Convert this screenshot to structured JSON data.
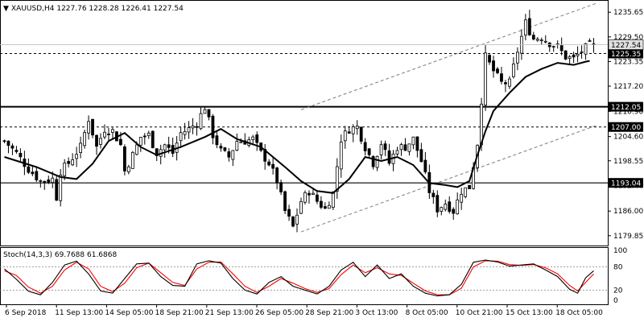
{
  "header": {
    "arrow": "▼",
    "symbol_line": "XAUUSD,H4  1227.76 1228.28 1226.41 1227.54",
    "stoch_label": "Stoch(14,3,3) 69.7688 61.6868"
  },
  "chart_data": [
    {
      "type": "candlestick",
      "symbol": "XAUUSD",
      "timeframe": "H4",
      "ohlc_last": {
        "open": 1227.76,
        "high": 1228.28,
        "low": 1226.41,
        "close": 1227.54
      },
      "ylim": [
        1178,
        1237.5
      ],
      "price_ticks": [
        1235.65,
        1229.5,
        1223.35,
        1217.2,
        1210.9,
        1204.6,
        1198.55,
        1192.4,
        1186.0,
        1179.85
      ],
      "price_tick_labels": [
        "1235.65",
        "1229.50",
        "1223.35",
        "1217.20",
        "1210.90",
        "1204.60",
        "1198.55",
        "1192.40",
        "1186.00",
        "1179.85"
      ],
      "x_labels": [
        "6 Sep 2018",
        "11 Sep 13:00",
        "14 Sep 05:00",
        "18 Sep 21:00",
        "21 Sep 13:00",
        "26 Sep 05:00",
        "28 Sep 21:00",
        "3 Oct 13:00",
        "8 Oct 05:00",
        "10 Oct 21:00",
        "15 Oct 13:00",
        "18 Oct 05:00"
      ],
      "n_bars": 148,
      "horizontal_lines": [
        {
          "price": 1225.35,
          "label": "1225.35",
          "style": "dashed"
        },
        {
          "price": 1212.05,
          "label": "1212.05",
          "style": "solid-thick"
        },
        {
          "price": 1207.0,
          "label": "1207.00",
          "style": "dashed"
        },
        {
          "price": 1193.04,
          "label": "1193.04",
          "style": "solid"
        }
      ],
      "current_price": {
        "price": 1227.54,
        "label": "1227.54"
      },
      "channel": {
        "bar_start": 74,
        "price_start": 1180.8,
        "bar_end": 148,
        "price_end": 1207.5,
        "upper_offset": 30.5
      },
      "moving_average": [
        [
          0,
          1199.5
        ],
        [
          8,
          1197
        ],
        [
          14,
          1194.5
        ],
        [
          18,
          1194
        ],
        [
          22,
          1197.8
        ],
        [
          26,
          1203.5
        ],
        [
          30,
          1205.5
        ],
        [
          34,
          1202
        ],
        [
          38,
          1200
        ],
        [
          44,
          1202
        ],
        [
          50,
          1204.5
        ],
        [
          54,
          1206.5
        ],
        [
          58,
          1204
        ],
        [
          64,
          1202
        ],
        [
          70,
          1197
        ],
        [
          74,
          1193.5
        ],
        [
          78,
          1191
        ],
        [
          82,
          1190.5
        ],
        [
          86,
          1194
        ],
        [
          90,
          1199.5
        ],
        [
          94,
          1198.5
        ],
        [
          98,
          1199.5
        ],
        [
          102,
          1197.5
        ],
        [
          106,
          1193
        ],
        [
          110,
          1192.5
        ],
        [
          113,
          1192
        ],
        [
          116,
          1193.5
        ],
        [
          118,
          1200
        ],
        [
          120,
          1206
        ],
        [
          122,
          1211
        ],
        [
          126,
          1215.5
        ],
        [
          130,
          1219.5
        ],
        [
          134,
          1221.5
        ],
        [
          138,
          1223
        ],
        [
          142,
          1222.5
        ],
        [
          145,
          1223.3
        ],
        [
          146,
          1223.5
        ]
      ],
      "close_path": [
        [
          0,
          1203.5
        ],
        [
          3,
          1200.5
        ],
        [
          6,
          1196.5
        ],
        [
          9,
          1193.5
        ],
        [
          12,
          1194
        ],
        [
          13,
          1189.5
        ],
        [
          14,
          1196
        ],
        [
          16,
          1198
        ],
        [
          19,
          1202
        ],
        [
          21,
          1209
        ],
        [
          23,
          1202
        ],
        [
          25,
          1206.5
        ],
        [
          27,
          1206
        ],
        [
          29,
          1202.5
        ],
        [
          30,
          1196
        ],
        [
          32,
          1200
        ],
        [
          34,
          1204.5
        ],
        [
          36,
          1205
        ],
        [
          38,
          1200.5
        ],
        [
          40,
          1202.5
        ],
        [
          42,
          1200.5
        ],
        [
          44,
          1205.5
        ],
        [
          46,
          1206.5
        ],
        [
          48,
          1208
        ],
        [
          50,
          1212
        ],
        [
          52,
          1205
        ],
        [
          54,
          1201
        ],
        [
          56,
          1199.5
        ],
        [
          58,
          1203.5
        ],
        [
          60,
          1203.5
        ],
        [
          62,
          1204
        ],
        [
          64,
          1200.5
        ],
        [
          66,
          1198
        ],
        [
          68,
          1193.5
        ],
        [
          70,
          1186
        ],
        [
          72,
          1182
        ],
        [
          74,
          1188.5
        ],
        [
          76,
          1191
        ],
        [
          78,
          1188.5
        ],
        [
          80,
          1186.5
        ],
        [
          82,
          1190.5
        ],
        [
          84,
          1204
        ],
        [
          86,
          1206.5
        ],
        [
          88,
          1207
        ],
        [
          90,
          1202
        ],
        [
          92,
          1198
        ],
        [
          94,
          1203
        ],
        [
          96,
          1198
        ],
        [
          98,
          1202
        ],
        [
          100,
          1202
        ],
        [
          102,
          1204
        ],
        [
          104,
          1198.5
        ],
        [
          106,
          1191
        ],
        [
          108,
          1186.5
        ],
        [
          110,
          1188
        ],
        [
          112,
          1186
        ],
        [
          114,
          1191
        ],
        [
          116,
          1192
        ],
        [
          118,
          1203
        ],
        [
          120,
          1224.5
        ],
        [
          122,
          1221
        ],
        [
          124,
          1218
        ],
        [
          126,
          1218
        ],
        [
          128,
          1226
        ],
        [
          130,
          1233
        ],
        [
          132,
          1229
        ],
        [
          134,
          1229.5
        ],
        [
          136,
          1228
        ],
        [
          138,
          1227
        ],
        [
          140,
          1224.5
        ],
        [
          142,
          1224
        ],
        [
          144,
          1226
        ],
        [
          146,
          1227.5
        ],
        [
          147,
          1227.54
        ]
      ],
      "stochastic": {
        "label": "Stoch(14,3,3) 69.7688 61.6868",
        "levels": [
          80,
          20
        ],
        "ylim": [
          0,
          100
        ],
        "axis_ticks": [
          100,
          0
        ],
        "main": [
          [
            0,
            75
          ],
          [
            3,
            48
          ],
          [
            6,
            17
          ],
          [
            9,
            8
          ],
          [
            12,
            40
          ],
          [
            15,
            85
          ],
          [
            18,
            95
          ],
          [
            21,
            62
          ],
          [
            24,
            18
          ],
          [
            27,
            12
          ],
          [
            30,
            50
          ],
          [
            33,
            88
          ],
          [
            36,
            90
          ],
          [
            39,
            55
          ],
          [
            42,
            32
          ],
          [
            45,
            30
          ],
          [
            48,
            88
          ],
          [
            51,
            96
          ],
          [
            54,
            90
          ],
          [
            57,
            50
          ],
          [
            60,
            20
          ],
          [
            63,
            10
          ],
          [
            66,
            40
          ],
          [
            69,
            55
          ],
          [
            72,
            30
          ],
          [
            75,
            20
          ],
          [
            78,
            10
          ],
          [
            81,
            30
          ],
          [
            84,
            72
          ],
          [
            87,
            92
          ],
          [
            90,
            55
          ],
          [
            93,
            85
          ],
          [
            96,
            50
          ],
          [
            99,
            62
          ],
          [
            102,
            30
          ],
          [
            105,
            12
          ],
          [
            108,
            5
          ],
          [
            111,
            8
          ],
          [
            114,
            35
          ],
          [
            117,
            92
          ],
          [
            120,
            98
          ],
          [
            123,
            93
          ],
          [
            126,
            82
          ],
          [
            129,
            85
          ],
          [
            132,
            88
          ],
          [
            135,
            72
          ],
          [
            138,
            55
          ],
          [
            141,
            22
          ],
          [
            143,
            12
          ],
          [
            145,
            52
          ],
          [
            147,
            70
          ]
        ],
        "signal": [
          [
            0,
            70
          ],
          [
            3,
            58
          ],
          [
            6,
            28
          ],
          [
            9,
            12
          ],
          [
            12,
            30
          ],
          [
            15,
            72
          ],
          [
            18,
            92
          ],
          [
            21,
            75
          ],
          [
            24,
            30
          ],
          [
            27,
            16
          ],
          [
            30,
            38
          ],
          [
            33,
            78
          ],
          [
            36,
            90
          ],
          [
            39,
            65
          ],
          [
            42,
            40
          ],
          [
            45,
            32
          ],
          [
            48,
            75
          ],
          [
            51,
            92
          ],
          [
            54,
            93
          ],
          [
            57,
            62
          ],
          [
            60,
            30
          ],
          [
            63,
            14
          ],
          [
            66,
            30
          ],
          [
            69,
            50
          ],
          [
            72,
            38
          ],
          [
            75,
            24
          ],
          [
            78,
            14
          ],
          [
            81,
            24
          ],
          [
            84,
            60
          ],
          [
            87,
            85
          ],
          [
            90,
            65
          ],
          [
            93,
            78
          ],
          [
            96,
            62
          ],
          [
            99,
            58
          ],
          [
            102,
            38
          ],
          [
            105,
            18
          ],
          [
            108,
            8
          ],
          [
            111,
            8
          ],
          [
            114,
            25
          ],
          [
            117,
            80
          ],
          [
            120,
            96
          ],
          [
            123,
            95
          ],
          [
            126,
            86
          ],
          [
            129,
            84
          ],
          [
            132,
            86
          ],
          [
            135,
            78
          ],
          [
            138,
            62
          ],
          [
            141,
            32
          ],
          [
            143,
            18
          ],
          [
            145,
            40
          ],
          [
            147,
            62
          ]
        ]
      }
    }
  ],
  "colors": {
    "background": "#ffffff",
    "candle": "#000000",
    "ma": "#000000",
    "stoch_main": "#000000",
    "stoch_signal": "#ff0000",
    "channel": "#808080",
    "level_box": "#000000",
    "level_text": "#ffffff",
    "current_box": "#e0e0e0"
  }
}
